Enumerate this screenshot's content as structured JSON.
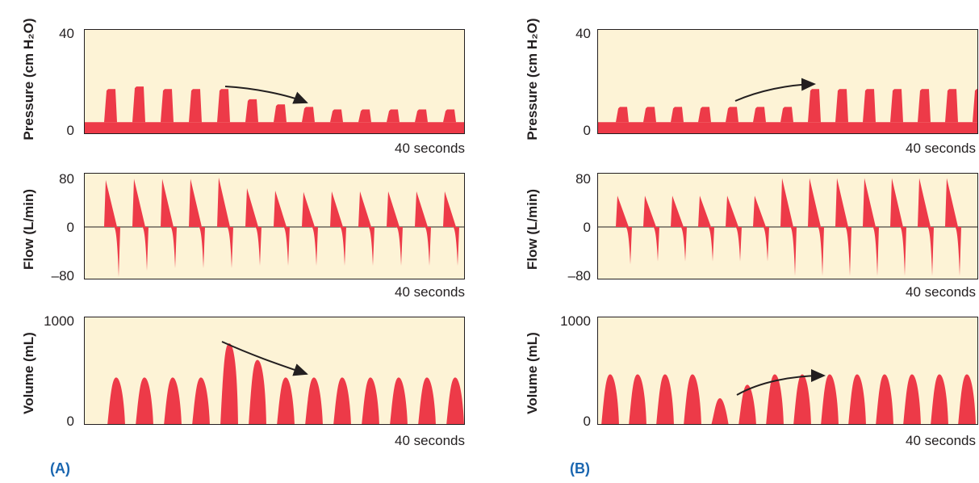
{
  "colors": {
    "fill": "#ed3a48",
    "background": "#fdf3d6",
    "arrow": "#231f20",
    "panel_label": "#1a66b0"
  },
  "chart_data": [
    {
      "type": "area",
      "panel": "(A)",
      "ylabel": "Pressure (cm H₂O)",
      "ylim": [
        0,
        40
      ],
      "yticks": [
        "40",
        "0"
      ],
      "xnote": "40 seconds",
      "annotation": "arrow showing peak pressure decreasing",
      "peak_pressure": [
        18,
        19,
        18,
        18,
        18,
        14,
        12,
        11,
        10,
        10,
        10,
        10,
        10
      ]
    },
    {
      "type": "area",
      "panel": "(A)",
      "ylabel": "Flow (L/min)",
      "ylim": [
        -80,
        80
      ],
      "yticks": [
        "80",
        "0",
        "–80"
      ],
      "xnote": "40 seconds",
      "inspiratory_peak": [
        75,
        77,
        77,
        77,
        79,
        62,
        58,
        56,
        57,
        57,
        57,
        57,
        57
      ],
      "expiratory_peak": [
        -80,
        -70,
        -66,
        -66,
        -66,
        -62,
        -62,
        -62,
        -62,
        -62,
        -62,
        -62,
        -62
      ]
    },
    {
      "type": "area",
      "panel": "(A)",
      "ylabel": "Volume (mL)",
      "ylim": [
        0,
        1000
      ],
      "yticks": [
        "1000",
        "0"
      ],
      "xnote": "40 seconds",
      "annotation": "arrow showing tidal volume decreasing",
      "tidal_volume": [
        450,
        450,
        450,
        450,
        780,
        620,
        450,
        450,
        450,
        450,
        450,
        450,
        450
      ]
    },
    {
      "type": "area",
      "panel": "(B)",
      "ylabel": "Pressure (cm H₂O)",
      "ylim": [
        0,
        40
      ],
      "yticks": [
        "40",
        "0"
      ],
      "xnote": "40 seconds",
      "annotation": "arrow showing peak pressure increasing",
      "peak_pressure": [
        11,
        11,
        11,
        11,
        11,
        11,
        11,
        18,
        18,
        18,
        18,
        18,
        18,
        18
      ]
    },
    {
      "type": "area",
      "panel": "(B)",
      "ylabel": "Flow (L/min)",
      "ylim": [
        -80,
        80
      ],
      "yticks": [
        "80",
        "0",
        "–80"
      ],
      "xnote": "40 seconds",
      "inspiratory_peak": [
        50,
        50,
        50,
        50,
        50,
        50,
        78,
        78,
        78,
        78,
        78,
        78,
        78
      ],
      "expiratory_peak": [
        -60,
        -55,
        -55,
        -55,
        -55,
        -55,
        -78,
        -78,
        -78,
        -78,
        -78,
        -78,
        -78
      ]
    },
    {
      "type": "area",
      "panel": "(B)",
      "ylabel": "Volume (mL)",
      "ylim": [
        0,
        1000
      ],
      "yticks": [
        "1000",
        "0"
      ],
      "xnote": "40 seconds",
      "annotation": "arrow showing tidal volume increasing",
      "tidal_volume": [
        480,
        480,
        480,
        480,
        250,
        380,
        480,
        480,
        480,
        480,
        480,
        480,
        480,
        480
      ]
    }
  ],
  "labels": {
    "panel_a": "(A)",
    "panel_b": "(B)"
  }
}
